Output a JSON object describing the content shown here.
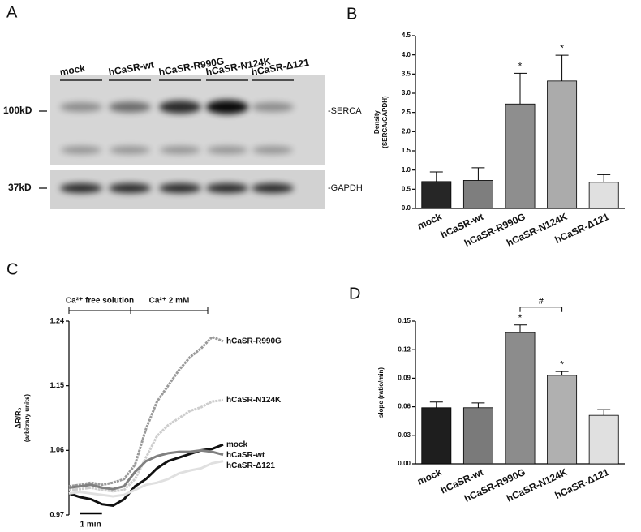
{
  "panel_labels": [
    "A",
    "B",
    "C",
    "D"
  ],
  "blot": {
    "lanes": [
      "mock",
      "hCaSR-wt",
      "hCaSR-R990G",
      "hCaSR-N124K",
      "hCaSR-Δ121"
    ],
    "markers": [
      "100kD",
      "37kD"
    ],
    "bands": [
      "-SERCA",
      "-GAPDH"
    ]
  },
  "chart_data": [
    {
      "type": "bar",
      "y_label": [
        "Density",
        "(SERCA/GAPDH)"
      ],
      "categories": [
        "mock",
        "hCaSR-wt",
        "hCaSR-R990G",
        "hCaSR-N124K",
        "hCaSR-Δ121"
      ],
      "values": [
        0.7,
        0.73,
        2.72,
        3.32,
        0.68
      ],
      "errors": [
        0.25,
        0.33,
        0.8,
        0.67,
        0.2
      ],
      "colors": [
        "#262626",
        "#7e7e7e",
        "#8e8e8e",
        "#ababab",
        "#e0e0e0"
      ],
      "ylim": [
        0,
        4.5
      ],
      "yticks": [
        {
          "value": 0,
          "label": "0.0"
        },
        0.5,
        {
          "value": 1,
          "label": "1.0"
        },
        1.5,
        {
          "value": 2,
          "label": "2.0"
        },
        2.5,
        {
          "value": 3,
          "label": "3.0"
        },
        3.5,
        {
          "value": 4,
          "label": "4.0"
        },
        4.5
      ],
      "annotations": [
        {
          "text": "*",
          "category": "hCaSR-R990G"
        },
        {
          "text": "*",
          "category": "hCaSR-N124K"
        }
      ]
    },
    {
      "type": "line",
      "y_label": [
        "ΔR/R₀",
        "(arbitrary units)"
      ],
      "x": [
        0,
        0.5,
        1,
        1.5,
        2,
        2.5,
        3,
        3.5,
        4,
        4.5,
        5,
        5.5,
        6,
        6.5,
        7
      ],
      "xlim": [
        0,
        7
      ],
      "ylim": [
        0.97,
        1.24
      ],
      "yticks": [
        0.97,
        1.06,
        1.15,
        1.24
      ],
      "periods": [
        {
          "label": "Ca²⁺ free solution",
          "range": [
            0,
            2.8
          ]
        },
        {
          "label": "Ca²⁺ 2 mM",
          "range": [
            2.8,
            6.3
          ]
        }
      ],
      "scale_bar": {
        "label": "1 min",
        "length": 1
      },
      "series": [
        {
          "name": "hCaSR-R990G",
          "color": "#9a9a9a",
          "values": [
            1.01,
            1.012,
            1.015,
            1.012,
            1.015,
            1.02,
            1.04,
            1.09,
            1.128,
            1.15,
            1.172,
            1.19,
            1.202,
            1.218,
            1.212
          ]
        },
        {
          "name": "hCaSR-N124K",
          "color": "#cdcdcd",
          "values": [
            1.005,
            1.006,
            1.008,
            1.005,
            1.003,
            1.005,
            1.02,
            1.05,
            1.08,
            1.095,
            1.105,
            1.115,
            1.12,
            1.128,
            1.13
          ]
        },
        {
          "name": "mock",
          "color": "#111111",
          "values": [
            1.0,
            0.995,
            0.992,
            0.985,
            0.983,
            0.992,
            1.01,
            1.02,
            1.035,
            1.045,
            1.05,
            1.055,
            1.06,
            1.062,
            1.068
          ]
        },
        {
          "name": "hCaSR-wt",
          "color": "#808080",
          "values": [
            1.008,
            1.01,
            1.012,
            1.008,
            1.006,
            1.01,
            1.03,
            1.045,
            1.052,
            1.056,
            1.058,
            1.058,
            1.06,
            1.058,
            1.054
          ]
        },
        {
          "name": "hCaSR-Δ121",
          "color": "#e0e0e0",
          "values": [
            1.0,
            1.002,
            1.0,
            0.998,
            0.996,
            0.998,
            1.005,
            1.012,
            1.015,
            1.02,
            1.028,
            1.032,
            1.035,
            1.042,
            1.045
          ]
        }
      ]
    },
    {
      "type": "bar",
      "y_label": [
        "slope (ratio/min)"
      ],
      "categories": [
        "mock",
        "hCaSR-wt",
        "hCaSR-R990G",
        "hCaSR-N124K",
        "hCaSR-Δ121"
      ],
      "values": [
        0.059,
        0.059,
        0.138,
        0.093,
        0.051
      ],
      "errors": [
        0.006,
        0.005,
        0.008,
        0.004,
        0.006
      ],
      "colors": [
        "#1e1e1e",
        "#7a7a7a",
        "#8c8c8c",
        "#b0b0b0",
        "#e0e0e0"
      ],
      "ylim": [
        0,
        0.15
      ],
      "yticks": [
        {
          "value": 0,
          "label": "0.00"
        },
        {
          "value": 0.03,
          "label": "0.03"
        },
        {
          "value": 0.06,
          "label": "0.06"
        },
        {
          "value": 0.09,
          "label": "0.09"
        },
        {
          "value": 0.12,
          "label": "0.12"
        },
        {
          "value": 0.15,
          "label": "0.15"
        }
      ],
      "annotations": [
        {
          "text": "*",
          "category": "hCaSR-R990G"
        },
        {
          "text": "*",
          "category": "hCaSR-N124K"
        },
        {
          "text": "#",
          "categories": [
            "hCaSR-R990G",
            "hCaSR-N124K"
          ]
        }
      ]
    }
  ]
}
